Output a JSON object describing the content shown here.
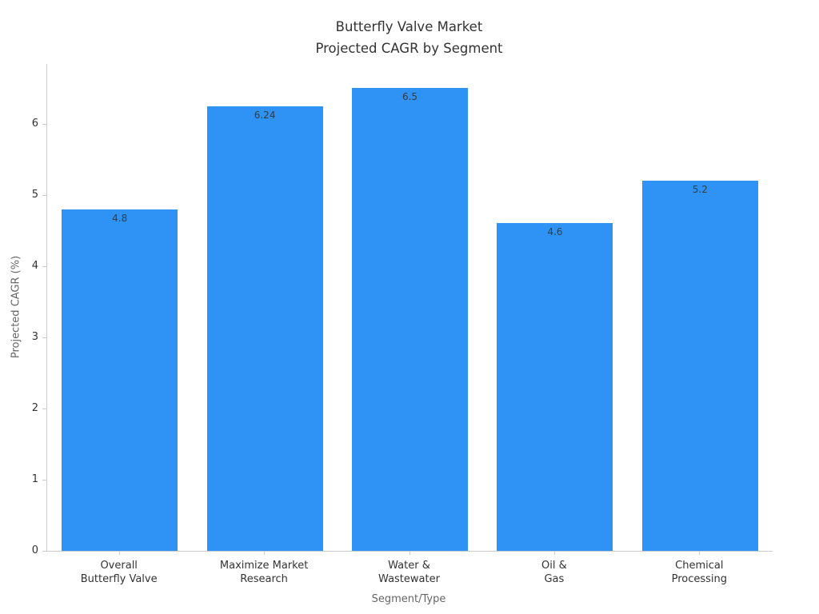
{
  "title": {
    "line1": "Butterfly Valve Market",
    "line2": "Projected CAGR by Segment"
  },
  "chart_data": {
    "type": "bar",
    "title": "Butterfly Valve Market\nProjected CAGR by Segment",
    "categories": [
      [
        "Overall",
        "Butterfly Valve"
      ],
      [
        "Maximize Market",
        "Research"
      ],
      [
        "Water &",
        "Wastewater"
      ],
      [
        "Oil &",
        "Gas"
      ],
      [
        "Chemical",
        "Processing"
      ]
    ],
    "values": [
      4.8,
      6.24,
      6.5,
      4.6,
      5.2
    ],
    "bar_labels": [
      "4.8",
      "6.24",
      "6.5",
      "4.6",
      "5.2"
    ],
    "xlabel": "Segment/Type",
    "ylabel": "Projected CAGR (%)",
    "ylim": [
      0,
      6.84
    ],
    "yticks": [
      0,
      1,
      2,
      3,
      4,
      5,
      6
    ],
    "ytick_labels": [
      "0",
      "1",
      "2",
      "3",
      "4",
      "5",
      "6"
    ],
    "grid": false,
    "legend": "none",
    "bar_color": "#2E93F5",
    "bar_width_fraction": 0.8,
    "label_color": "#3a3a3a",
    "tick_color": "#333333",
    "axis_label_color": "#666666",
    "spine_color": "#cccccc"
  }
}
